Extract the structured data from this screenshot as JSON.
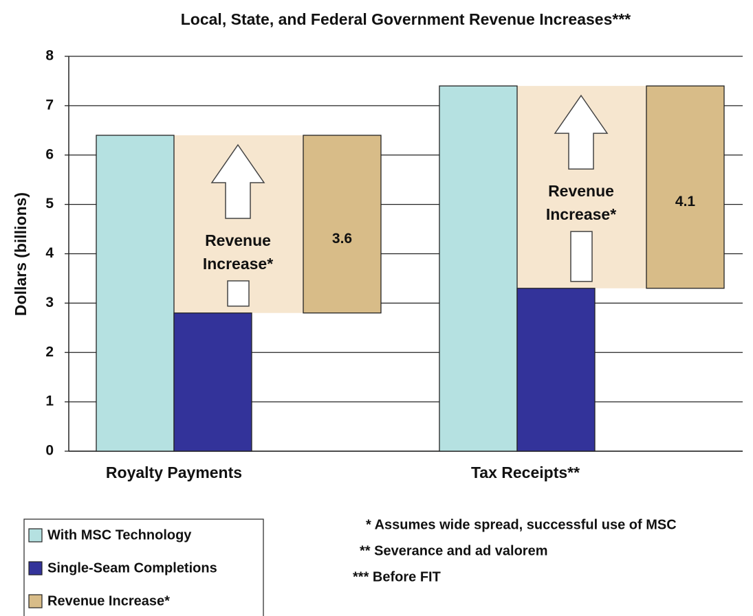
{
  "chart_data": {
    "type": "bar",
    "title": "Local, State, and Federal Government Revenue Increases***",
    "y_label": "Dollars (billions)",
    "categories": [
      "Royalty Payments",
      "Tax Receipts**"
    ],
    "series": [
      {
        "name": "With MSC Technology",
        "color": "#b5e1e1",
        "values": [
          6.4,
          7.4
        ]
      },
      {
        "name": "Single-Seam Completions",
        "color": "#33339a",
        "values": [
          2.8,
          3.3
        ]
      },
      {
        "name": "Revenue Increase*",
        "color": "#d8bc88",
        "values": [
          3.6,
          4.1
        ]
      }
    ],
    "band_color": "#f6e6cf",
    "ylim": [
      0,
      8
    ],
    "yticks": [
      0,
      1,
      2,
      3,
      4,
      5,
      6,
      7,
      8
    ],
    "grid": true,
    "footnotes": [
      "* Assumes wide spread, successful use of MSC",
      "** Severance and ad valorem",
      "*** Before FIT"
    ]
  }
}
